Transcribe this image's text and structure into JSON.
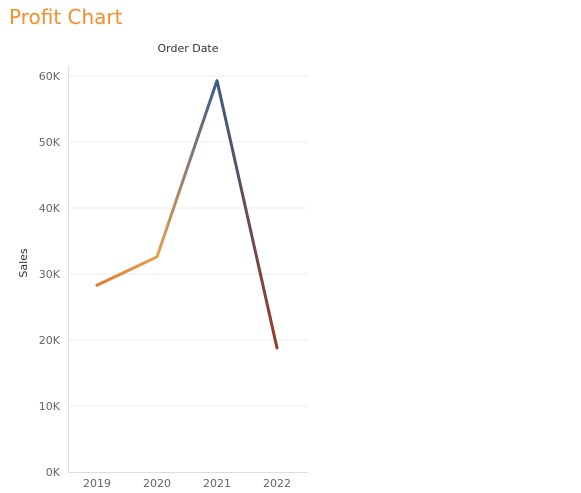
{
  "title": "Profit Chart",
  "colors": {
    "title": "#f28e2b",
    "gradient_stops": [
      "#e07b2e",
      "#e8a155",
      "#3a5a85",
      "#9a3b25"
    ],
    "gridline": "#eeeeee",
    "axis_line": "#dddddd"
  },
  "chart_data": {
    "type": "line",
    "title": "",
    "column_header": "Order Date",
    "xlabel": "",
    "ylabel": "Sales",
    "x": [
      "2019",
      "2020",
      "2021",
      "2022"
    ],
    "series": [
      {
        "values": [
          28300,
          32600,
          59300,
          18800
        ]
      }
    ],
    "ylim": [
      0,
      60000
    ],
    "yticks": [
      0,
      10000,
      20000,
      30000,
      40000,
      50000,
      60000
    ],
    "ytick_labels": [
      "0K",
      "10K",
      "20K",
      "30K",
      "40K",
      "50K",
      "60K"
    ],
    "grid": true,
    "legend": "none"
  }
}
